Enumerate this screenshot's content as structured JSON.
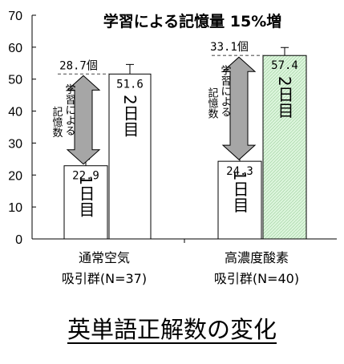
{
  "chart_data": {
    "type": "bar",
    "title": "学習による記憶量 15%増",
    "ylim": [
      0,
      70
    ],
    "yticks": [
      0,
      10,
      20,
      30,
      40,
      50,
      60,
      70
    ],
    "grid": false,
    "groups": [
      {
        "label_line1": "通常空気",
        "label_line2": "吸引群(N=37)",
        "bars": [
          {
            "day_label": "1日目",
            "value": 22.9,
            "value_label": "22.9",
            "error": 2.0,
            "fill": "#ffffff"
          },
          {
            "day_label": "2日目",
            "value": 51.6,
            "value_label": "51.6",
            "error": 3.0,
            "fill": "#ffffff"
          }
        ],
        "gain_label": "28.7個",
        "gain_value": 28.7,
        "arrow_text": "学習による記憶数"
      },
      {
        "label_line1": "高濃度酸素",
        "label_line2": "吸引群(N=40)",
        "bars": [
          {
            "day_label": "1日目",
            "value": 24.3,
            "value_label": "24.3",
            "error": 2.0,
            "fill": "#ffffff"
          },
          {
            "day_label": "2日目",
            "value": 57.4,
            "value_label": "57.4",
            "error": 2.5,
            "fill": "#dcf5dc"
          }
        ],
        "gain_label": "33.1個",
        "gain_value": 33.1,
        "arrow_text": "学習による記憶数"
      }
    ]
  },
  "caption": "英単語正解数の変化",
  "colors": {
    "arrow_fill": "#a6a6a6",
    "hatch_green": "#dcf5dc",
    "axis": "#000000",
    "dash": "#808080"
  }
}
